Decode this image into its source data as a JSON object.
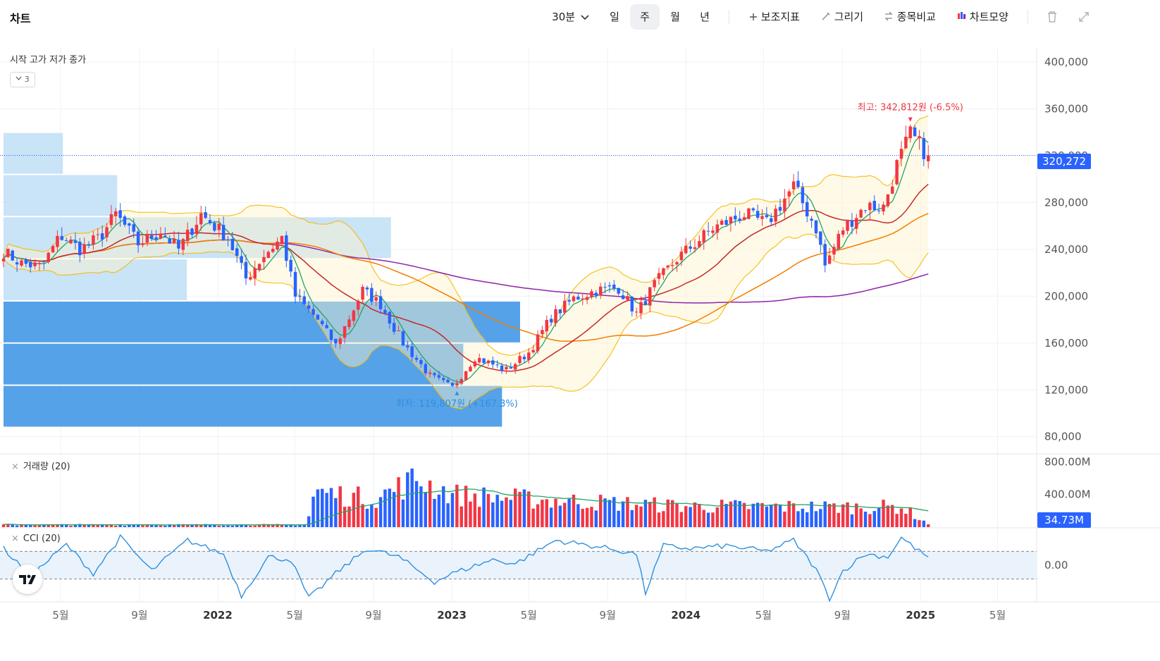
{
  "toolbar": {
    "title": "차트",
    "interval": "30분",
    "periods": [
      "일",
      "주",
      "월",
      "년"
    ],
    "active_period": "주",
    "indicators_label": "보조지표",
    "draw_label": "그리기",
    "compare_label": "종목비교",
    "style_label": "차트모양"
  },
  "legend": {
    "ohlc": "시작 고가 저가 종가",
    "collapsed_count": "3"
  },
  "panes": {
    "volume_label": "거래량 (20)",
    "cci_label": "CCI (20)"
  },
  "price_tag": "320,272",
  "volume_tag": "34.73M",
  "colors": {
    "up": "#f23645",
    "down": "#2962ff",
    "ma5": "#22a463",
    "ma20": "#c62828",
    "ma60": "#f57c00",
    "ma120": "#8e24aa",
    "bb": "#f5b700",
    "vp_light": "#bcdcf5",
    "vp_dark": "#2f8de4",
    "cci": "#2d8fe0",
    "last_line": "#2962ff"
  },
  "chart_data": {
    "type": "candlestick",
    "y_ticks": [
      "400,000",
      "360,000",
      "320,000",
      "280,000",
      "240,000",
      "200,000",
      "160,000",
      "120,000",
      "80,000"
    ],
    "y_range": [
      66000,
      412000
    ],
    "x_ticks": [
      {
        "date": "2021-05",
        "label": "5월"
      },
      {
        "date": "2021-09",
        "label": "9월"
      },
      {
        "date": "2022-01",
        "label": "2022"
      },
      {
        "date": "2022-05",
        "label": "5월"
      },
      {
        "date": "2022-09",
        "label": "9월"
      },
      {
        "date": "2023-01",
        "label": "2023"
      },
      {
        "date": "2023-05",
        "label": "5월"
      },
      {
        "date": "2023-09",
        "label": "9월"
      },
      {
        "date": "2024-01",
        "label": "2024"
      },
      {
        "date": "2024-05",
        "label": "5월"
      },
      {
        "date": "2024-09",
        "label": "9월"
      },
      {
        "date": "2025-01",
        "label": "2025"
      },
      {
        "date": "2025-05",
        "label": "5월"
      }
    ],
    "x_range": [
      "2021-02-01",
      "2025-07-01"
    ],
    "high_annotation": "최고: 342,812원 (-6.5%)",
    "low_annotation": "최저: 119,807원 (+167.3%)",
    "high": 342812,
    "low": 119807,
    "last": 320272,
    "close_anchors": [
      [
        "2021-02-01",
        238000
      ],
      [
        "2021-03-01",
        228000
      ],
      [
        "2021-04-01",
        225000
      ],
      [
        "2021-05-01",
        252000
      ],
      [
        "2021-06-01",
        240000
      ],
      [
        "2021-07-01",
        250000
      ],
      [
        "2021-07-26",
        270000
      ],
      [
        "2021-08-30",
        245000
      ],
      [
        "2021-10-04",
        255000
      ],
      [
        "2021-11-01",
        240000
      ],
      [
        "2021-12-06",
        270000
      ],
      [
        "2022-01-17",
        250000
      ],
      [
        "2022-02-14",
        215000
      ],
      [
        "2022-03-14",
        235000
      ],
      [
        "2022-04-11",
        250000
      ],
      [
        "2022-05-02",
        200000
      ],
      [
        "2022-06-06",
        180000
      ],
      [
        "2022-07-04",
        158000
      ],
      [
        "2022-08-15",
        205000
      ],
      [
        "2022-09-12",
        193000
      ],
      [
        "2022-10-17",
        160000
      ],
      [
        "2022-11-28",
        132000
      ],
      [
        "2023-01-02",
        122000
      ],
      [
        "2023-02-06",
        148000
      ],
      [
        "2023-03-27",
        137000
      ],
      [
        "2023-05-01",
        152000
      ],
      [
        "2023-06-05",
        182000
      ],
      [
        "2023-07-10",
        198000
      ],
      [
        "2023-08-14",
        205000
      ],
      [
        "2023-09-18",
        207000
      ],
      [
        "2023-10-16",
        185000
      ],
      [
        "2023-11-13",
        210000
      ],
      [
        "2023-12-18",
        232000
      ],
      [
        "2024-02-12",
        258000
      ],
      [
        "2024-04-01",
        270000
      ],
      [
        "2024-05-06",
        262000
      ],
      [
        "2024-06-17",
        294000
      ],
      [
        "2024-07-22",
        258000
      ],
      [
        "2024-08-05",
        226000
      ],
      [
        "2024-09-02",
        258000
      ],
      [
        "2024-10-07",
        277000
      ],
      [
        "2024-11-04",
        276000
      ],
      [
        "2024-11-25",
        312000
      ],
      [
        "2024-12-16",
        338000
      ],
      [
        "2025-01-13",
        320272
      ]
    ],
    "volume": {
      "y_ticks": [
        "800.00M",
        "400.00M"
      ],
      "y_max": 880,
      "last": "34.73M",
      "level_anchors": [
        [
          "2021-02-01",
          30
        ],
        [
          "2022-05-20",
          30
        ],
        [
          "2022-06-01",
          460
        ],
        [
          "2022-09-01",
          360
        ],
        [
          "2022-11-07",
          620
        ],
        [
          "2023-01-02",
          420
        ],
        [
          "2023-05-01",
          360
        ],
        [
          "2024-01-01",
          270
        ],
        [
          "2024-08-01",
          260
        ],
        [
          "2024-12-01",
          260
        ],
        [
          "2025-01-13",
          40
        ]
      ]
    },
    "cci": {
      "y_ticks": [
        "0.00"
      ],
      "y_range": [
        -260,
        260
      ],
      "band": [
        -100,
        100
      ],
      "anchors": [
        [
          "2021-02-01",
          120
        ],
        [
          "2021-03-15",
          -80
        ],
        [
          "2021-05-10",
          150
        ],
        [
          "2021-06-21",
          -60
        ],
        [
          "2021-08-02",
          200
        ],
        [
          "2021-09-20",
          -40
        ],
        [
          "2021-11-15",
          180
        ],
        [
          "2022-01-10",
          80
        ],
        [
          "2022-02-07",
          -220
        ],
        [
          "2022-03-21",
          60
        ],
        [
          "2022-04-25",
          40
        ],
        [
          "2022-05-23",
          -240
        ],
        [
          "2022-07-04",
          -60
        ],
        [
          "2022-08-22",
          120
        ],
        [
          "2022-10-10",
          60
        ],
        [
          "2022-12-05",
          -120
        ],
        [
          "2023-01-02",
          -60
        ],
        [
          "2023-03-06",
          40
        ],
        [
          "2023-04-10",
          10
        ],
        [
          "2023-06-12",
          180
        ],
        [
          "2023-07-24",
          150
        ],
        [
          "2023-09-04",
          120
        ],
        [
          "2023-10-16",
          80
        ],
        [
          "2023-10-30",
          -200
        ],
        [
          "2023-11-27",
          140
        ],
        [
          "2024-01-08",
          120
        ],
        [
          "2024-03-04",
          140
        ],
        [
          "2024-05-06",
          100
        ],
        [
          "2024-06-17",
          180
        ],
        [
          "2024-07-22",
          -30
        ],
        [
          "2024-08-12",
          -240
        ],
        [
          "2024-09-02",
          -40
        ],
        [
          "2024-10-07",
          80
        ],
        [
          "2024-11-11",
          60
        ],
        [
          "2024-12-02",
          200
        ],
        [
          "2024-12-30",
          100
        ],
        [
          "2025-01-13",
          60
        ]
      ]
    },
    "volume_profile": {
      "rows": [
        {
          "range": [
            304000,
            340000
          ],
          "fraction": 0.115,
          "shade": "light"
        },
        {
          "range": [
            268000,
            304000
          ],
          "fraction": 0.22,
          "shade": "light"
        },
        {
          "range": [
            232000,
            268000
          ],
          "fraction": 0.75,
          "shade": "light"
        },
        {
          "range": [
            196000,
            232000
          ],
          "fraction": 0.355,
          "shade": "light"
        },
        {
          "range": [
            160000,
            196000
          ],
          "fraction": 1.0,
          "shade": "dark"
        },
        {
          "range": [
            124000,
            160000
          ],
          "fraction": 0.89,
          "shade": "dark"
        },
        {
          "range": [
            88000,
            124000
          ],
          "fraction": 0.965,
          "shade": "dark"
        }
      ]
    }
  }
}
